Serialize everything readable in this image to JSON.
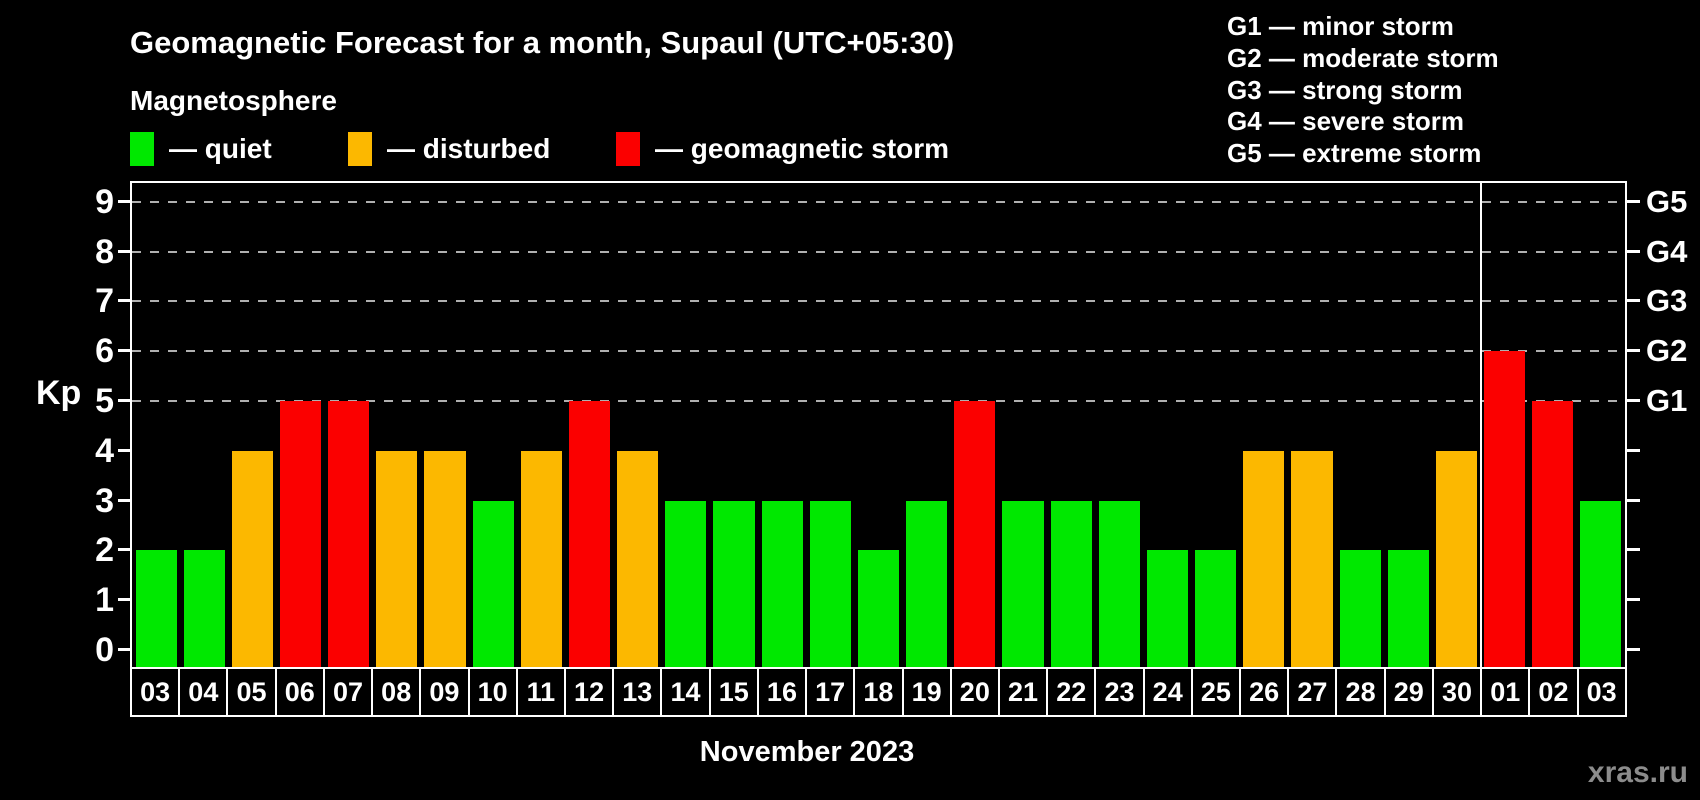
{
  "title": "Geomagnetic Forecast for a month, Supaul (UTC+05:30)",
  "subtitle": "Magnetosphere",
  "legend": {
    "items": [
      {
        "name": "quiet",
        "label": "— quiet",
        "color": "#00e800"
      },
      {
        "name": "disturbed",
        "label": "— disturbed",
        "color": "#fcb800"
      },
      {
        "name": "storm",
        "label": "— geomagnetic storm",
        "color": "#fb0000"
      }
    ]
  },
  "g_scale_legend": {
    "items": [
      "G1 — minor storm",
      "G2 — moderate storm",
      "G3 — strong storm",
      "G4 — severe storm",
      "G5 — extreme storm"
    ]
  },
  "watermark": "xras.ru",
  "chart_data": {
    "type": "bar",
    "title": "Geomagnetic Forecast for a month, Supaul (UTC+05:30)",
    "xlabel": "November 2023",
    "ylabel": "Kp",
    "ylim": [
      0,
      9
    ],
    "yticks": [
      0,
      1,
      2,
      3,
      4,
      5,
      6,
      7,
      8,
      9
    ],
    "gridlines_at": [
      5,
      6,
      7,
      8,
      9
    ],
    "grid_style": "dashed gray horizontal lines at storm levels only",
    "legend_position": "top-left",
    "right_axis_labels": [
      {
        "kp": 5,
        "label": "G1"
      },
      {
        "kp": 6,
        "label": "G2"
      },
      {
        "kp": 7,
        "label": "G3"
      },
      {
        "kp": 8,
        "label": "G4"
      },
      {
        "kp": 9,
        "label": "G5"
      }
    ],
    "categories": [
      "03",
      "04",
      "05",
      "06",
      "07",
      "08",
      "09",
      "10",
      "11",
      "12",
      "13",
      "14",
      "15",
      "16",
      "17",
      "18",
      "19",
      "20",
      "21",
      "22",
      "23",
      "24",
      "25",
      "26",
      "27",
      "28",
      "29",
      "30",
      "01",
      "02",
      "03"
    ],
    "values": [
      2,
      2,
      4,
      5,
      5,
      4,
      4,
      3,
      4,
      5,
      4,
      3,
      3,
      3,
      3,
      2,
      3,
      5,
      3,
      3,
      3,
      2,
      2,
      4,
      4,
      2,
      2,
      4,
      6,
      5,
      3
    ],
    "statuses": [
      "quiet",
      "quiet",
      "disturbed",
      "storm",
      "storm",
      "disturbed",
      "disturbed",
      "quiet",
      "disturbed",
      "storm",
      "disturbed",
      "quiet",
      "quiet",
      "quiet",
      "quiet",
      "quiet",
      "quiet",
      "storm",
      "quiet",
      "quiet",
      "quiet",
      "quiet",
      "quiet",
      "disturbed",
      "disturbed",
      "quiet",
      "quiet",
      "disturbed",
      "storm",
      "storm",
      "quiet"
    ],
    "month_boundary_after_index": 27,
    "colors": {
      "quiet": "#00e800",
      "disturbed": "#fcb800",
      "storm": "#fb0000"
    },
    "background": "#000000",
    "axis_color": "#ffffff",
    "grid_color": "#b0b0b0",
    "watermark_color": "#8c8c8c"
  }
}
